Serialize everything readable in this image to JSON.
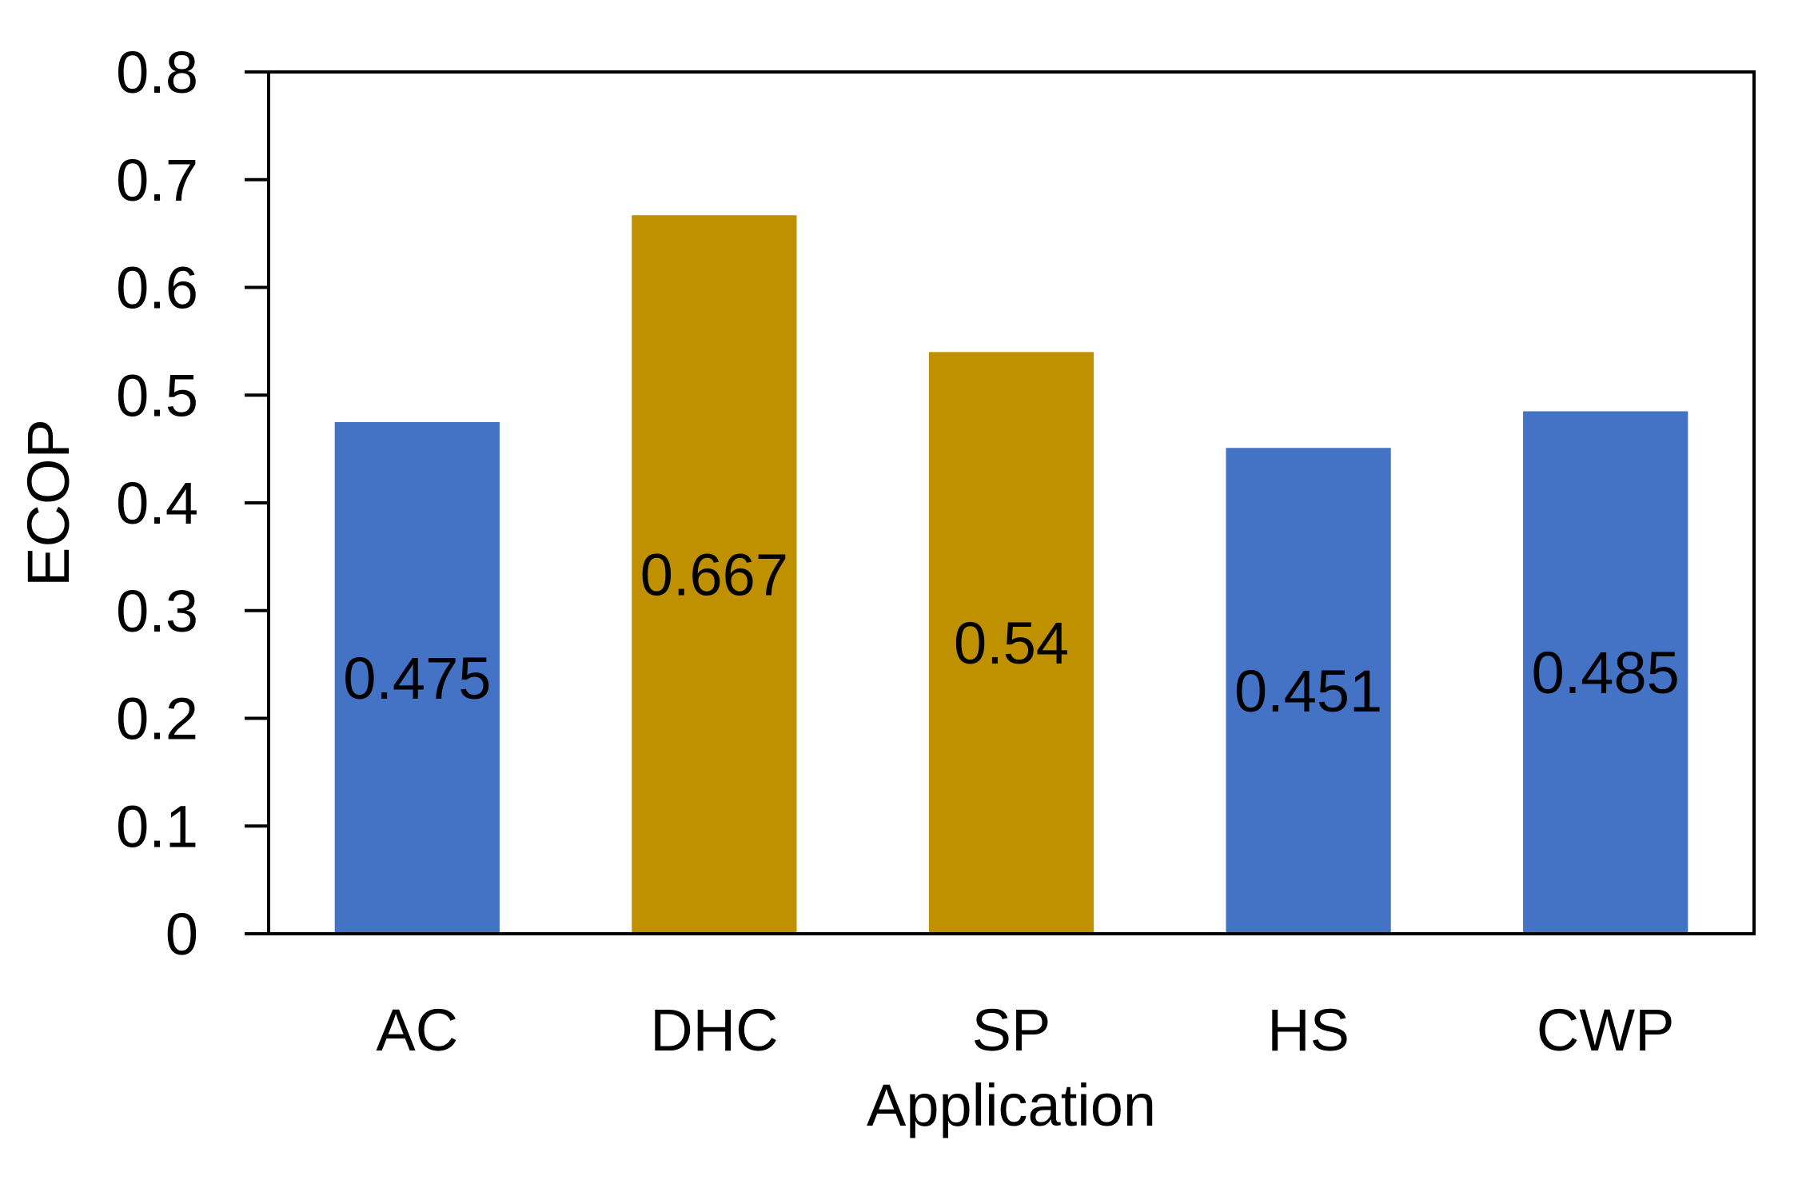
{
  "chart_data": {
    "type": "bar",
    "title": "",
    "xlabel": "Application",
    "ylabel": "ECOP",
    "categories": [
      "AC",
      "DHC",
      "SP",
      "HS",
      "CWP"
    ],
    "values": [
      0.475,
      0.667,
      0.54,
      0.451,
      0.485
    ],
    "data_labels": [
      "0.475",
      "0.667",
      "0.54",
      "0.451",
      "0.485"
    ],
    "bar_colors": [
      "#4472C4",
      "#BF9000",
      "#BF9000",
      "#4472C4",
      "#4472C4"
    ],
    "ylim": [
      0,
      0.8
    ],
    "yticks": [
      0,
      0.1,
      0.2,
      0.3,
      0.4,
      0.5,
      0.6,
      0.7,
      0.8
    ],
    "ytick_labels": [
      "0",
      "0.1",
      "0.2",
      "0.3",
      "0.4",
      "0.5",
      "0.6",
      "0.7",
      "0.8"
    ],
    "grid": false,
    "legend": "none"
  }
}
